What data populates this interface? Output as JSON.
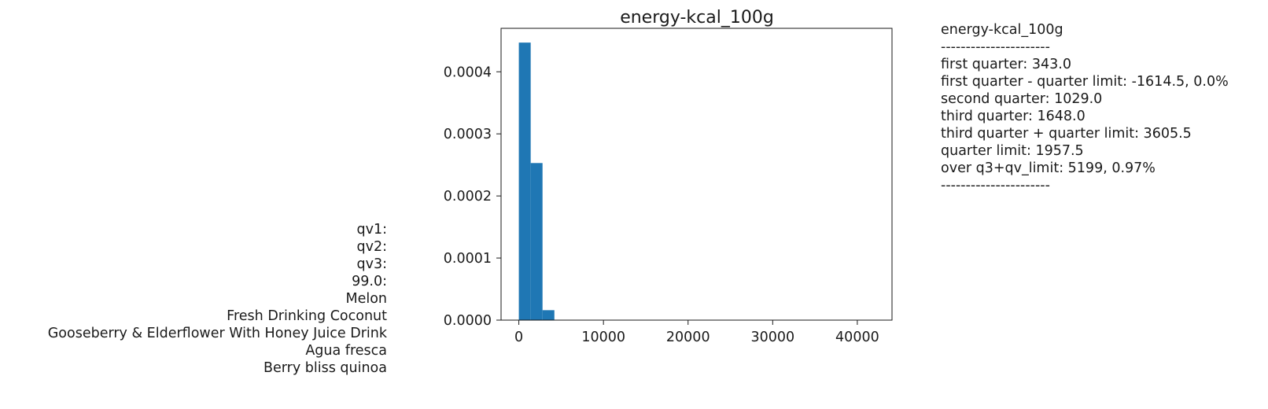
{
  "chart_data": {
    "type": "bar",
    "title": "energy-kcal_100g",
    "xlabel": "",
    "ylabel": "",
    "xlim": [
      -2100,
      44100
    ],
    "ylim": [
      0,
      0.00047
    ],
    "xticks": [
      0,
      10000,
      20000,
      30000,
      40000
    ],
    "xtick_labels": [
      "0",
      "10000",
      "20000",
      "30000",
      "40000"
    ],
    "yticks": [
      0,
      0.0001,
      0.0002,
      0.0003,
      0.0004
    ],
    "ytick_labels": [
      "0.0000",
      "0.0001",
      "0.0002",
      "0.0003",
      "0.0004"
    ],
    "bin_width": 1400,
    "bins": [
      {
        "x0": 0,
        "x1": 1400,
        "value": 0.000447
      },
      {
        "x0": 1400,
        "x1": 2800,
        "value": 0.000253
      },
      {
        "x0": 2800,
        "x1": 4200,
        "value": 1.6e-05
      }
    ],
    "bar_color": "#1f77b4",
    "grid": false
  },
  "left_labels": [
    "qv1:",
    "qv2:",
    "qv3:",
    "99.0:",
    "Melon",
    "Fresh Drinking Coconut",
    "Gooseberry & Elderflower With Honey Juice Drink",
    "Agua fresca",
    "Berry bliss quinoa"
  ],
  "stats": [
    "energy-kcal_100g",
    "----------------------",
    "first quarter: 343.0",
    "first quarter - quarter limit: -1614.5, 0.0%",
    "second quarter: 1029.0",
    "third quarter: 1648.0",
    "third quarter + quarter limit: 3605.5",
    "quarter limit: 1957.5",
    "over q3+qv_limit: 5199, 0.97%",
    "----------------------"
  ]
}
